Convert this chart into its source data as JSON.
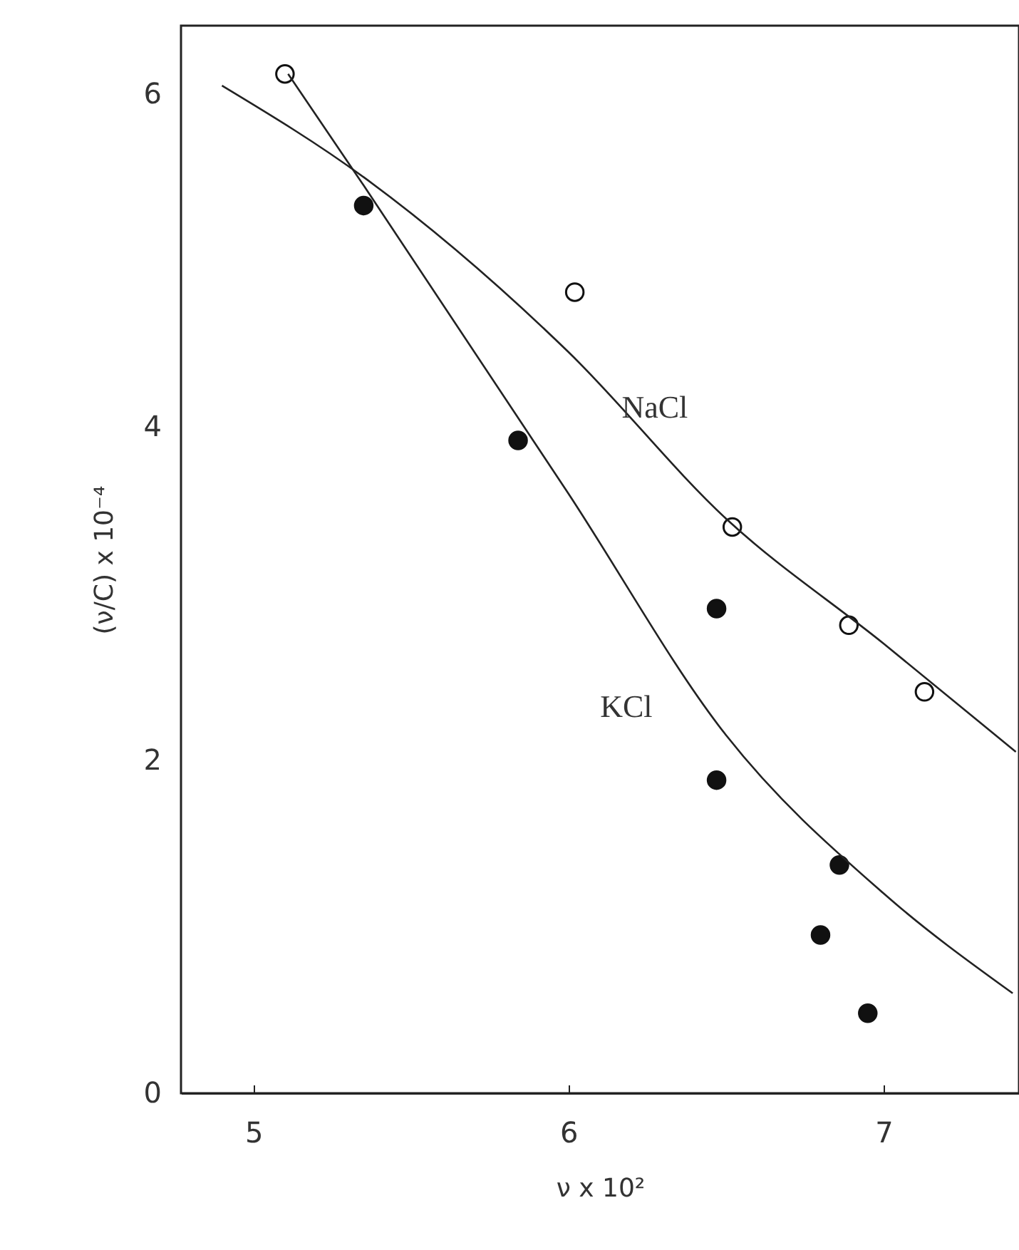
{
  "chart_data": {
    "type": "scatter",
    "xlabel": "ν x 10²",
    "ylabel": "(ν/C) x 10⁻⁴",
    "xlim": [
      4.77,
      7.43
    ],
    "ylim": [
      0,
      6.41
    ],
    "xticks": [
      5,
      6,
      7
    ],
    "yticks": [
      0,
      2,
      4,
      6
    ],
    "grid": false,
    "series": [
      {
        "color": "#ffffff",
        "marker": "circle",
        "x": [
          5.1,
          6.02,
          6.52,
          6.89,
          7.13
        ],
        "values": [
          6.12,
          4.81,
          3.4,
          2.81,
          2.41
        ]
      },
      {
        "color": "#111111",
        "marker": "circle",
        "x": [
          5.35,
          5.84,
          6.47,
          6.47,
          6.86,
          6.8,
          6.95
        ],
        "values": [
          5.33,
          3.92,
          2.91,
          1.88,
          1.37,
          0.95,
          0.48
        ]
      },
      {
        "type": "line",
        "name": "NaCl",
        "color": "#222222",
        "marker": "none",
        "x": [
          4.9,
          5.35,
          6.0,
          6.5,
          7.0,
          7.42
        ],
        "values": [
          6.05,
          5.5,
          4.45,
          3.45,
          2.7,
          2.05
        ]
      },
      {
        "type": "line",
        "name": "KCl",
        "color": "#222222",
        "marker": "none",
        "x": [
          5.11,
          5.35,
          6.0,
          6.5,
          7.0,
          7.41
        ],
        "values": [
          6.12,
          5.45,
          3.6,
          2.15,
          1.2,
          0.6
        ]
      }
    ]
  }
}
